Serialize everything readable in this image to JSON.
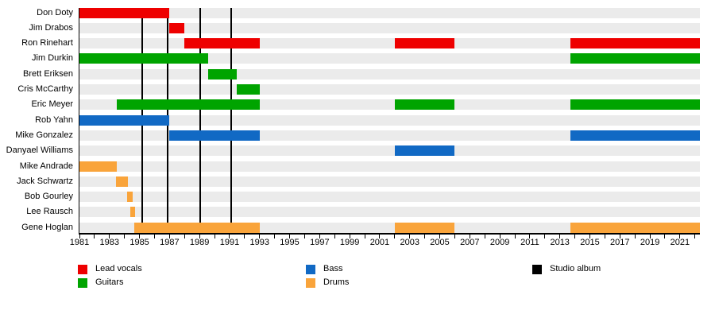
{
  "chart_data": {
    "type": "timeline",
    "x_axis": {
      "min": 1981,
      "max": 2022.35,
      "minor_tick_step": 1,
      "labeled_years": [
        1981,
        1983,
        1985,
        1987,
        1989,
        1991,
        1993,
        1995,
        1997,
        1999,
        2001,
        2003,
        2005,
        2007,
        2009,
        2011,
        2013,
        2015,
        2017,
        2019,
        2021
      ]
    },
    "colors": {
      "Lead vocals": "#ee0000",
      "Guitars": "#00a400",
      "Bass": "#1169c4",
      "Drums": "#f9a43b",
      "Studio album": "#000000",
      "row_band": "#ebebeb"
    },
    "members": [
      {
        "name": "Don Doty",
        "role": "Lead vocals",
        "periods": [
          [
            1981,
            1987
          ]
        ]
      },
      {
        "name": "Jim Drabos",
        "role": "Lead vocals",
        "periods": [
          [
            1987,
            1988
          ]
        ]
      },
      {
        "name": "Ron Rinehart",
        "role": "Lead vocals",
        "periods": [
          [
            1988,
            1993
          ],
          [
            2002,
            2006
          ],
          [
            2013.7,
            2022.35
          ]
        ]
      },
      {
        "name": "Jim Durkin",
        "role": "Guitars",
        "periods": [
          [
            1981,
            1989.55
          ],
          [
            2013.7,
            2022.35
          ]
        ]
      },
      {
        "name": "Brett Eriksen",
        "role": "Guitars",
        "periods": [
          [
            1989.55,
            1991.5
          ]
        ]
      },
      {
        "name": "Cris McCarthy",
        "role": "Guitars",
        "periods": [
          [
            1991.5,
            1993
          ]
        ]
      },
      {
        "name": "Eric Meyer",
        "role": "Guitars",
        "periods": [
          [
            1983.5,
            1993
          ],
          [
            2002,
            2006
          ],
          [
            2013.7,
            2022.35
          ]
        ]
      },
      {
        "name": "Rob Yahn",
        "role": "Bass",
        "periods": [
          [
            1981,
            1987
          ]
        ]
      },
      {
        "name": "Mike Gonzalez",
        "role": "Bass",
        "periods": [
          [
            1987,
            1993
          ],
          [
            2013.7,
            2022.35
          ]
        ]
      },
      {
        "name": "Danyael Williams",
        "role": "Bass",
        "periods": [
          [
            2002,
            2006
          ]
        ]
      },
      {
        "name": "Mike Andrade",
        "role": "Drums",
        "periods": [
          [
            1981,
            1983.5
          ]
        ]
      },
      {
        "name": "Jack Schwartz",
        "role": "Drums",
        "periods": [
          [
            1983.45,
            1984.25
          ]
        ]
      },
      {
        "name": "Bob Gourley",
        "role": "Drums",
        "periods": [
          [
            1984.2,
            1984.55
          ]
        ]
      },
      {
        "name": "Lee Rausch",
        "role": "Drums",
        "periods": [
          [
            1984.4,
            1984.72
          ]
        ]
      },
      {
        "name": "Gene Hoglan",
        "role": "Drums",
        "periods": [
          [
            1984.65,
            1993
          ],
          [
            2002,
            2006
          ],
          [
            2013.7,
            2022.35
          ]
        ]
      }
    ],
    "album_years": [
      1985.2,
      1986.85,
      1989.05,
      1991.1
    ]
  },
  "legend": {
    "columns": [
      [
        {
          "label": "Lead vocals",
          "color": "#ee0000"
        },
        {
          "label": "Guitars",
          "color": "#00a400"
        }
      ],
      [
        {
          "label": "Bass",
          "color": "#1169c4"
        },
        {
          "label": "Drums",
          "color": "#f9a43b"
        }
      ],
      [
        {
          "label": "Studio album",
          "color": "#000000"
        }
      ]
    ]
  }
}
